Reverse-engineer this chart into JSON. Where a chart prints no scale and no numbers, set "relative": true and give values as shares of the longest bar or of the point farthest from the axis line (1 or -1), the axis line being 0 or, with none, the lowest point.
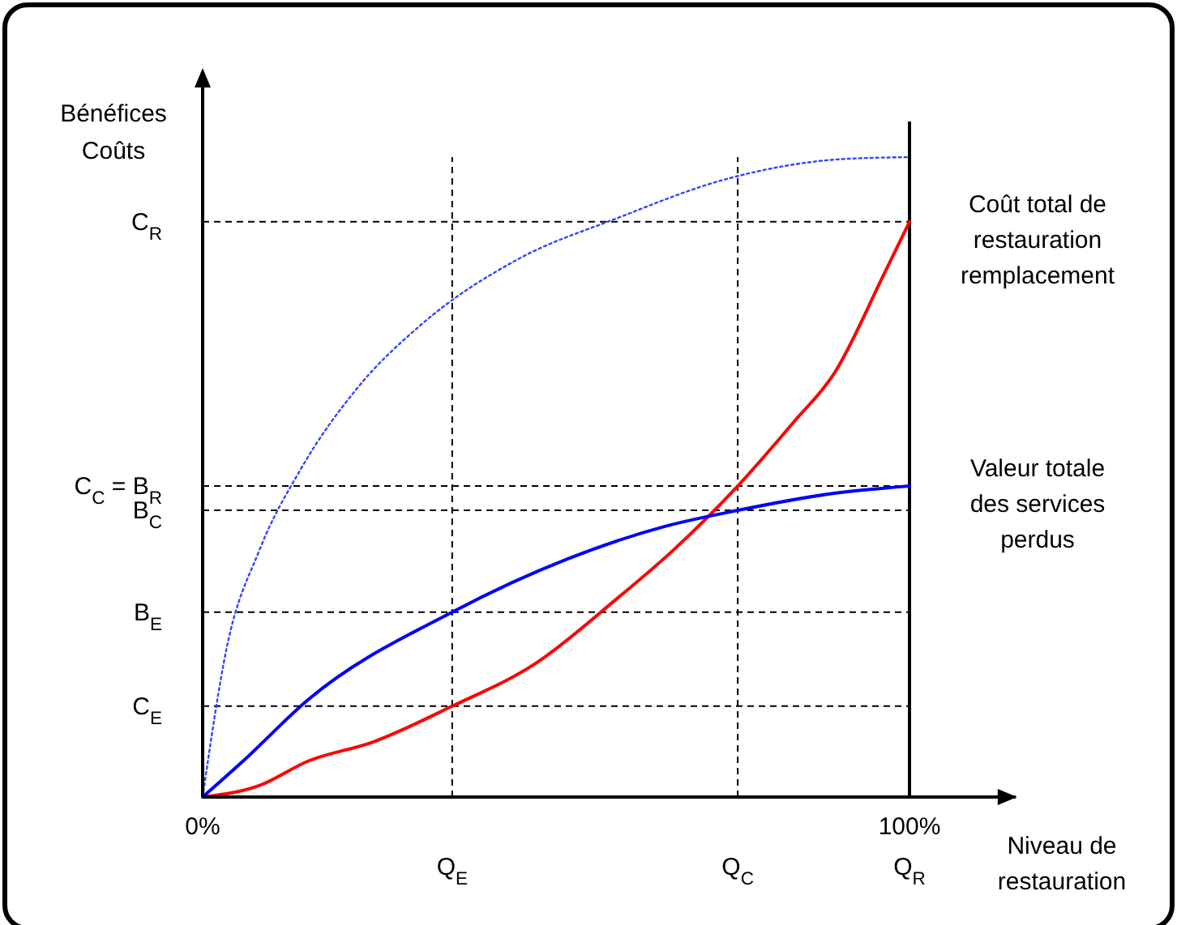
{
  "chart_data": {
    "type": "line",
    "relative": true,
    "xlabel": "Niveau de restauration",
    "ylabel": "Bénéfices Coûts",
    "xlim": [
      0,
      115
    ],
    "xticks": [
      {
        "value": 0,
        "label": "0%"
      },
      {
        "value": 100,
        "label": "100%"
      }
    ],
    "grid": false,
    "marker": "none",
    "series": [
      {
        "name": "Coût total de restauration remplacement",
        "color": "#ff0000",
        "line_style": "solid",
        "x": [
          0,
          8,
          14.9,
          24.1,
          35.3,
          47,
          58.5,
          66.5,
          75.7,
          83.7,
          89.4,
          96.3,
          100
        ],
        "values": [
          0,
          0.018,
          0.056,
          0.086,
          0.142,
          0.208,
          0.309,
          0.385,
          0.486,
          0.587,
          0.663,
          0.815,
          0.899
        ]
      },
      {
        "name": "Valeur totale des services perdus",
        "color": "#0000ff",
        "line_style": "solid",
        "x": [
          0,
          5.7,
          14.9,
          35.3,
          51.6,
          65.4,
          75.7,
          88.3,
          100
        ],
        "values": [
          0,
          0.056,
          0.152,
          0.289,
          0.372,
          0.423,
          0.448,
          0.473,
          0.486
        ]
      },
      {
        "color": "#3344ff",
        "line_style": "dotted",
        "x": [
          0,
          3.4,
          8,
          13.8,
          21.8,
          31,
          44.7,
          58.5,
          74.5,
          90.6,
          100
        ],
        "values": [
          0,
          0.233,
          0.385,
          0.511,
          0.638,
          0.739,
          0.841,
          0.904,
          0.967,
          0.997,
          1
        ]
      }
    ],
    "ref_lines": [
      {
        "axis": "y",
        "value": 0.899,
        "label": "C$_{R}$",
        "line_style": "dashed"
      },
      {
        "axis": "y",
        "value": 0.486,
        "label": "C$_{C}$ =  B$_{R}$",
        "line_style": "dashed"
      },
      {
        "axis": "y",
        "value": 0.448,
        "label": "B$_{C}$",
        "line_style": "dashed"
      },
      {
        "axis": "y",
        "value": 0.289,
        "label": "B$_{E}$",
        "line_style": "dashed"
      },
      {
        "axis": "y",
        "value": 0.142,
        "label": "C$_{E}$",
        "line_style": "dashed"
      },
      {
        "axis": "x",
        "value": 35.3,
        "label": "Q$_{E}$",
        "line_style": "dashed"
      },
      {
        "axis": "x",
        "value": 75.7,
        "label": "Q$_{C}$",
        "line_style": "dashed"
      },
      {
        "axis": "x",
        "value": 100,
        "label": "Q$_{R}$",
        "line_style": "solid"
      }
    ]
  }
}
